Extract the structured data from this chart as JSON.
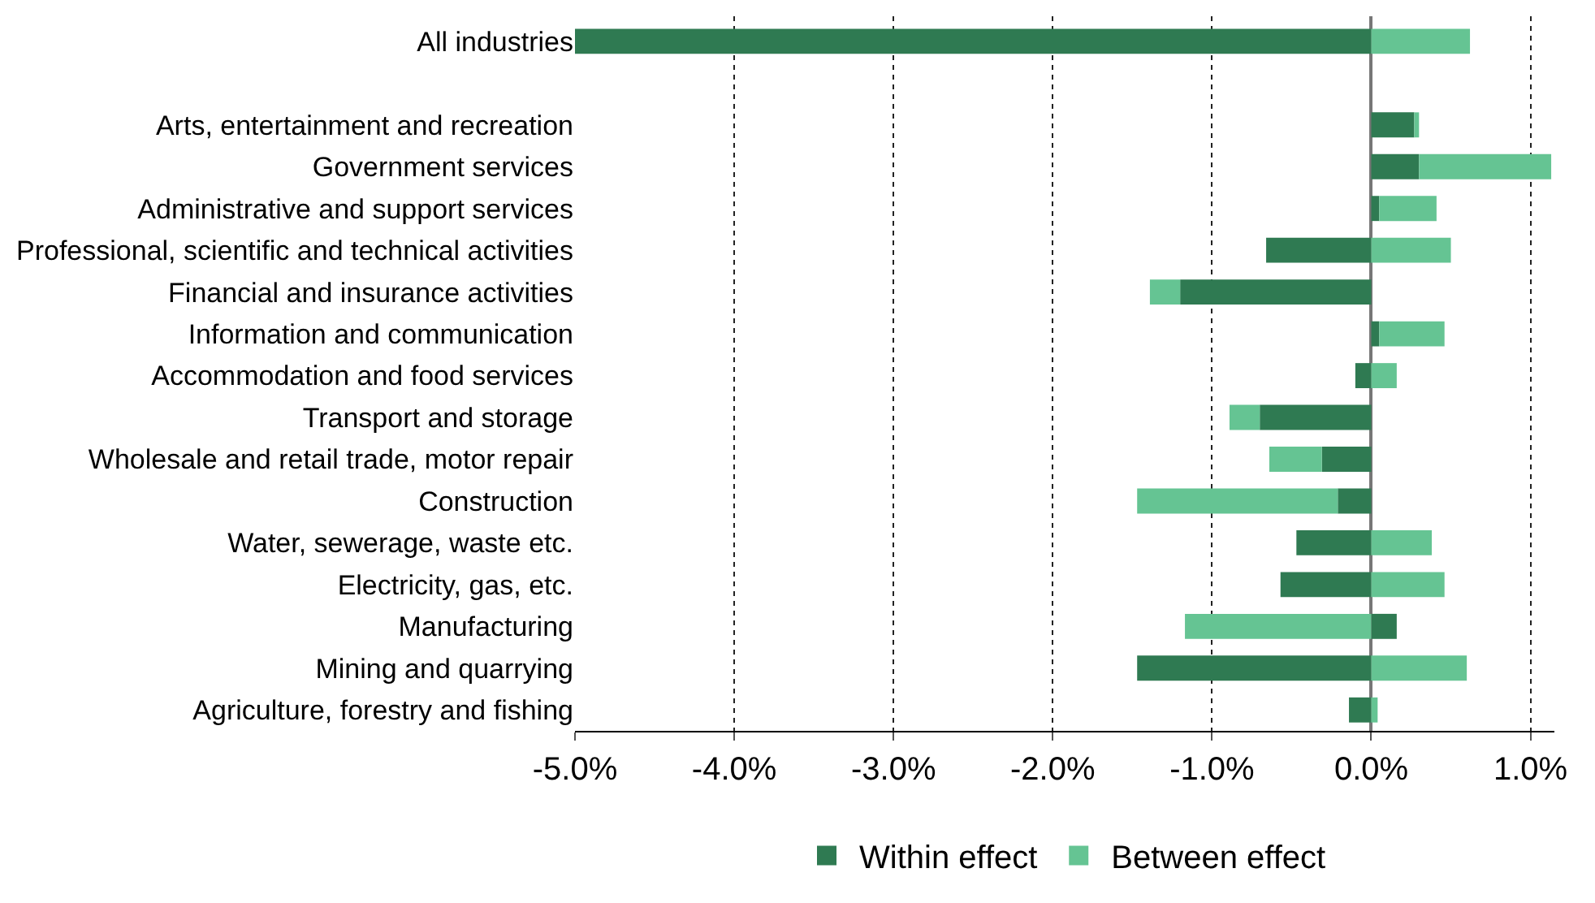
{
  "chart_data": {
    "type": "bar",
    "orientation": "horizontal",
    "stacked": true,
    "categories": [
      "All industries",
      null,
      "Arts, entertainment and recreation",
      "Government services",
      "Administrative and support services",
      "Professional, scientific and technical activities",
      "Financial and insurance activities",
      "Information and communication",
      "Accommodation and food services",
      "Transport and storage",
      "Wholesale and retail trade, motor repair",
      "Construction",
      "Water, sewerage, waste etc.",
      "Electricity, gas, etc.",
      "Manufacturing",
      "Mining and quarrying",
      "Agriculture, forestry and fishing"
    ],
    "series": [
      {
        "name": "Within effect",
        "color": "#2f7a52",
        "values": [
          -5.0,
          null,
          0.27,
          0.3,
          0.05,
          -0.66,
          -1.2,
          0.05,
          -0.1,
          -0.7,
          -0.31,
          -0.21,
          -0.47,
          -0.57,
          0.16,
          -1.47,
          -0.14
        ]
      },
      {
        "name": "Between effect",
        "color": "#65c493",
        "values": [
          0.62,
          null,
          0.03,
          0.83,
          0.36,
          0.5,
          -0.19,
          0.41,
          0.16,
          -0.19,
          -0.33,
          -1.26,
          0.38,
          0.46,
          -1.17,
          0.6,
          0.04
        ]
      }
    ],
    "xlim": [
      -5.0,
      1.15
    ],
    "xticks": [
      {
        "value": -5,
        "label": "-5.0%"
      },
      {
        "value": -4,
        "label": "-4.0%"
      },
      {
        "value": -3,
        "label": "-3.0%"
      },
      {
        "value": -2,
        "label": "-2.0%"
      },
      {
        "value": -1,
        "label": "-1.0%"
      },
      {
        "value": 0,
        "label": "0.0%"
      },
      {
        "value": 1,
        "label": "1.0%"
      }
    ],
    "grid": "x",
    "line_style": "dotted",
    "legend": "bottom"
  }
}
